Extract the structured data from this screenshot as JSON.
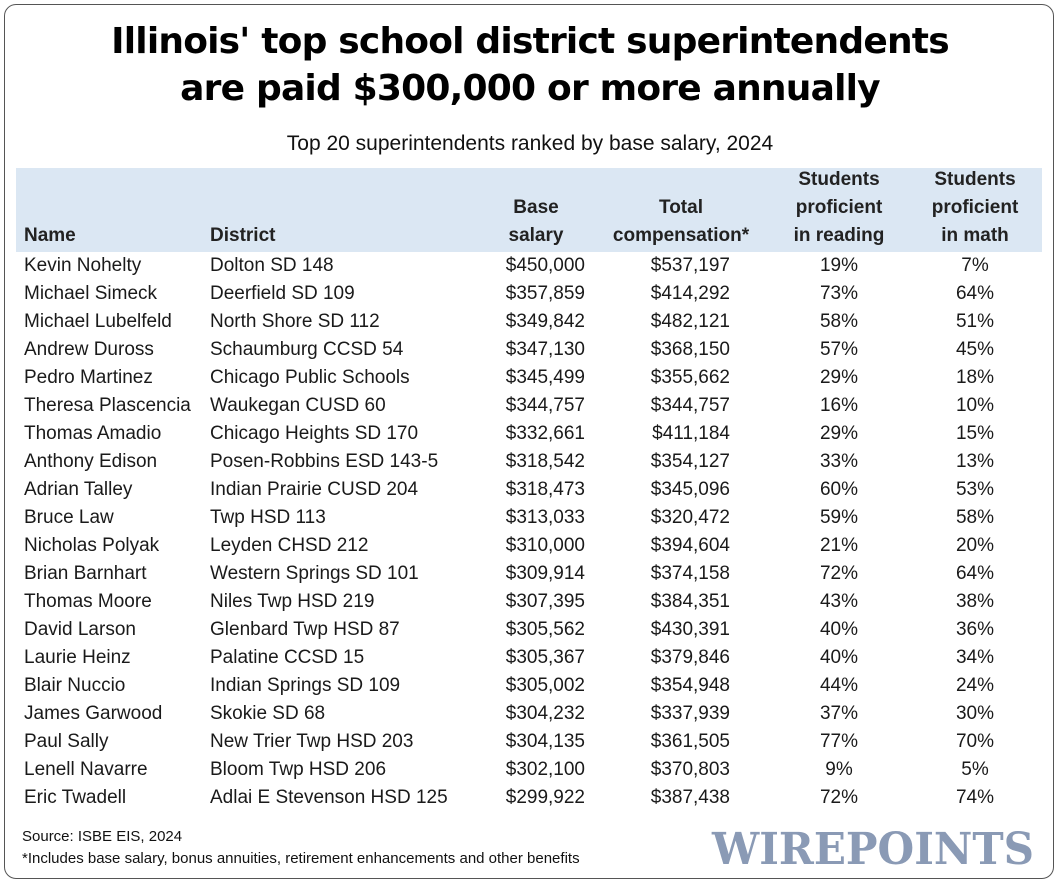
{
  "chart_data": {
    "type": "table",
    "title_line1": "Illinois' top school district superintendents",
    "title_line2": "are paid $300,000 or more annually",
    "subtitle": "Top 20 superintendents ranked by base salary, 2024",
    "columns": {
      "name": "Name",
      "district": "District",
      "base_line1": "Base",
      "base_line2": "salary",
      "total_line1": "Total",
      "total_line2": "compensation*",
      "read_line1": "Students",
      "read_line2": "proficient",
      "read_line3": "in reading",
      "math_line1": "Students",
      "math_line2": "proficient",
      "math_line3": "in math"
    },
    "rows": [
      {
        "name": "Kevin Nohelty",
        "district": "Dolton SD 148",
        "base_salary": "$450,000",
        "total_compensation": "$537,197",
        "reading": "19%",
        "math": "7%"
      },
      {
        "name": "Michael Simeck",
        "district": "Deerfield SD 109",
        "base_salary": "$357,859",
        "total_compensation": "$414,292",
        "reading": "73%",
        "math": "64%"
      },
      {
        "name": "Michael Lubelfeld",
        "district": "North Shore SD 112",
        "base_salary": "$349,842",
        "total_compensation": "$482,121",
        "reading": "58%",
        "math": "51%"
      },
      {
        "name": "Andrew Duross",
        "district": "Schaumburg CCSD 54",
        "base_salary": "$347,130",
        "total_compensation": "$368,150",
        "reading": "57%",
        "math": "45%"
      },
      {
        "name": "Pedro Martinez",
        "district": "Chicago Public Schools",
        "base_salary": "$345,499",
        "total_compensation": "$355,662",
        "reading": "29%",
        "math": "18%"
      },
      {
        "name": "Theresa Plascencia",
        "district": "Waukegan CUSD 60",
        "base_salary": "$344,757",
        "total_compensation": "$344,757",
        "reading": "16%",
        "math": "10%"
      },
      {
        "name": "Thomas Amadio",
        "district": "Chicago Heights SD 170",
        "base_salary": "$332,661",
        "total_compensation": "$411,184",
        "reading": "29%",
        "math": "15%"
      },
      {
        "name": "Anthony Edison",
        "district": "Posen-Robbins ESD 143-5",
        "base_salary": "$318,542",
        "total_compensation": "$354,127",
        "reading": "33%",
        "math": "13%"
      },
      {
        "name": "Adrian Talley",
        "district": "Indian Prairie CUSD 204",
        "base_salary": "$318,473",
        "total_compensation": "$345,096",
        "reading": "60%",
        "math": "53%"
      },
      {
        "name": "Bruce Law",
        "district": "Twp HSD 113",
        "base_salary": "$313,033",
        "total_compensation": "$320,472",
        "reading": "59%",
        "math": "58%"
      },
      {
        "name": "Nicholas Polyak",
        "district": "Leyden CHSD 212",
        "base_salary": "$310,000",
        "total_compensation": "$394,604",
        "reading": "21%",
        "math": "20%"
      },
      {
        "name": "Brian Barnhart",
        "district": "Western Springs SD 101",
        "base_salary": "$309,914",
        "total_compensation": "$374,158",
        "reading": "72%",
        "math": "64%"
      },
      {
        "name": "Thomas Moore",
        "district": "Niles Twp HSD 219",
        "base_salary": "$307,395",
        "total_compensation": "$384,351",
        "reading": "43%",
        "math": "38%"
      },
      {
        "name": "David Larson",
        "district": "Glenbard Twp HSD 87",
        "base_salary": "$305,562",
        "total_compensation": "$430,391",
        "reading": "40%",
        "math": "36%"
      },
      {
        "name": "Laurie Heinz",
        "district": "Palatine CCSD 15",
        "base_salary": "$305,367",
        "total_compensation": "$379,846",
        "reading": "40%",
        "math": "34%"
      },
      {
        "name": "Blair Nuccio",
        "district": "Indian Springs SD 109",
        "base_salary": "$305,002",
        "total_compensation": "$354,948",
        "reading": "44%",
        "math": "24%"
      },
      {
        "name": "James Garwood",
        "district": "Skokie SD 68",
        "base_salary": "$304,232",
        "total_compensation": "$337,939",
        "reading": "37%",
        "math": "30%"
      },
      {
        "name": "Paul Sally",
        "district": "New Trier Twp HSD 203",
        "base_salary": "$304,135",
        "total_compensation": "$361,505",
        "reading": "77%",
        "math": "70%"
      },
      {
        "name": "Lenell Navarre",
        "district": "Bloom Twp HSD 206",
        "base_salary": "$302,100",
        "total_compensation": "$370,803",
        "reading": "9%",
        "math": "5%"
      },
      {
        "name": "Eric Twadell",
        "district": "Adlai E Stevenson HSD 125",
        "base_salary": "$299,922",
        "total_compensation": "$387,438",
        "reading": "72%",
        "math": "74%"
      }
    ]
  },
  "footer": {
    "source": "Source: ISBE EIS, 2024",
    "note": "*Includes base salary, bonus annuities, retirement enhancements and other benefits",
    "logo_text": "WIREPOINTS"
  },
  "colors": {
    "header_band": "#dbe7f3",
    "logo": "#8a9ab5",
    "border": "#555555"
  }
}
